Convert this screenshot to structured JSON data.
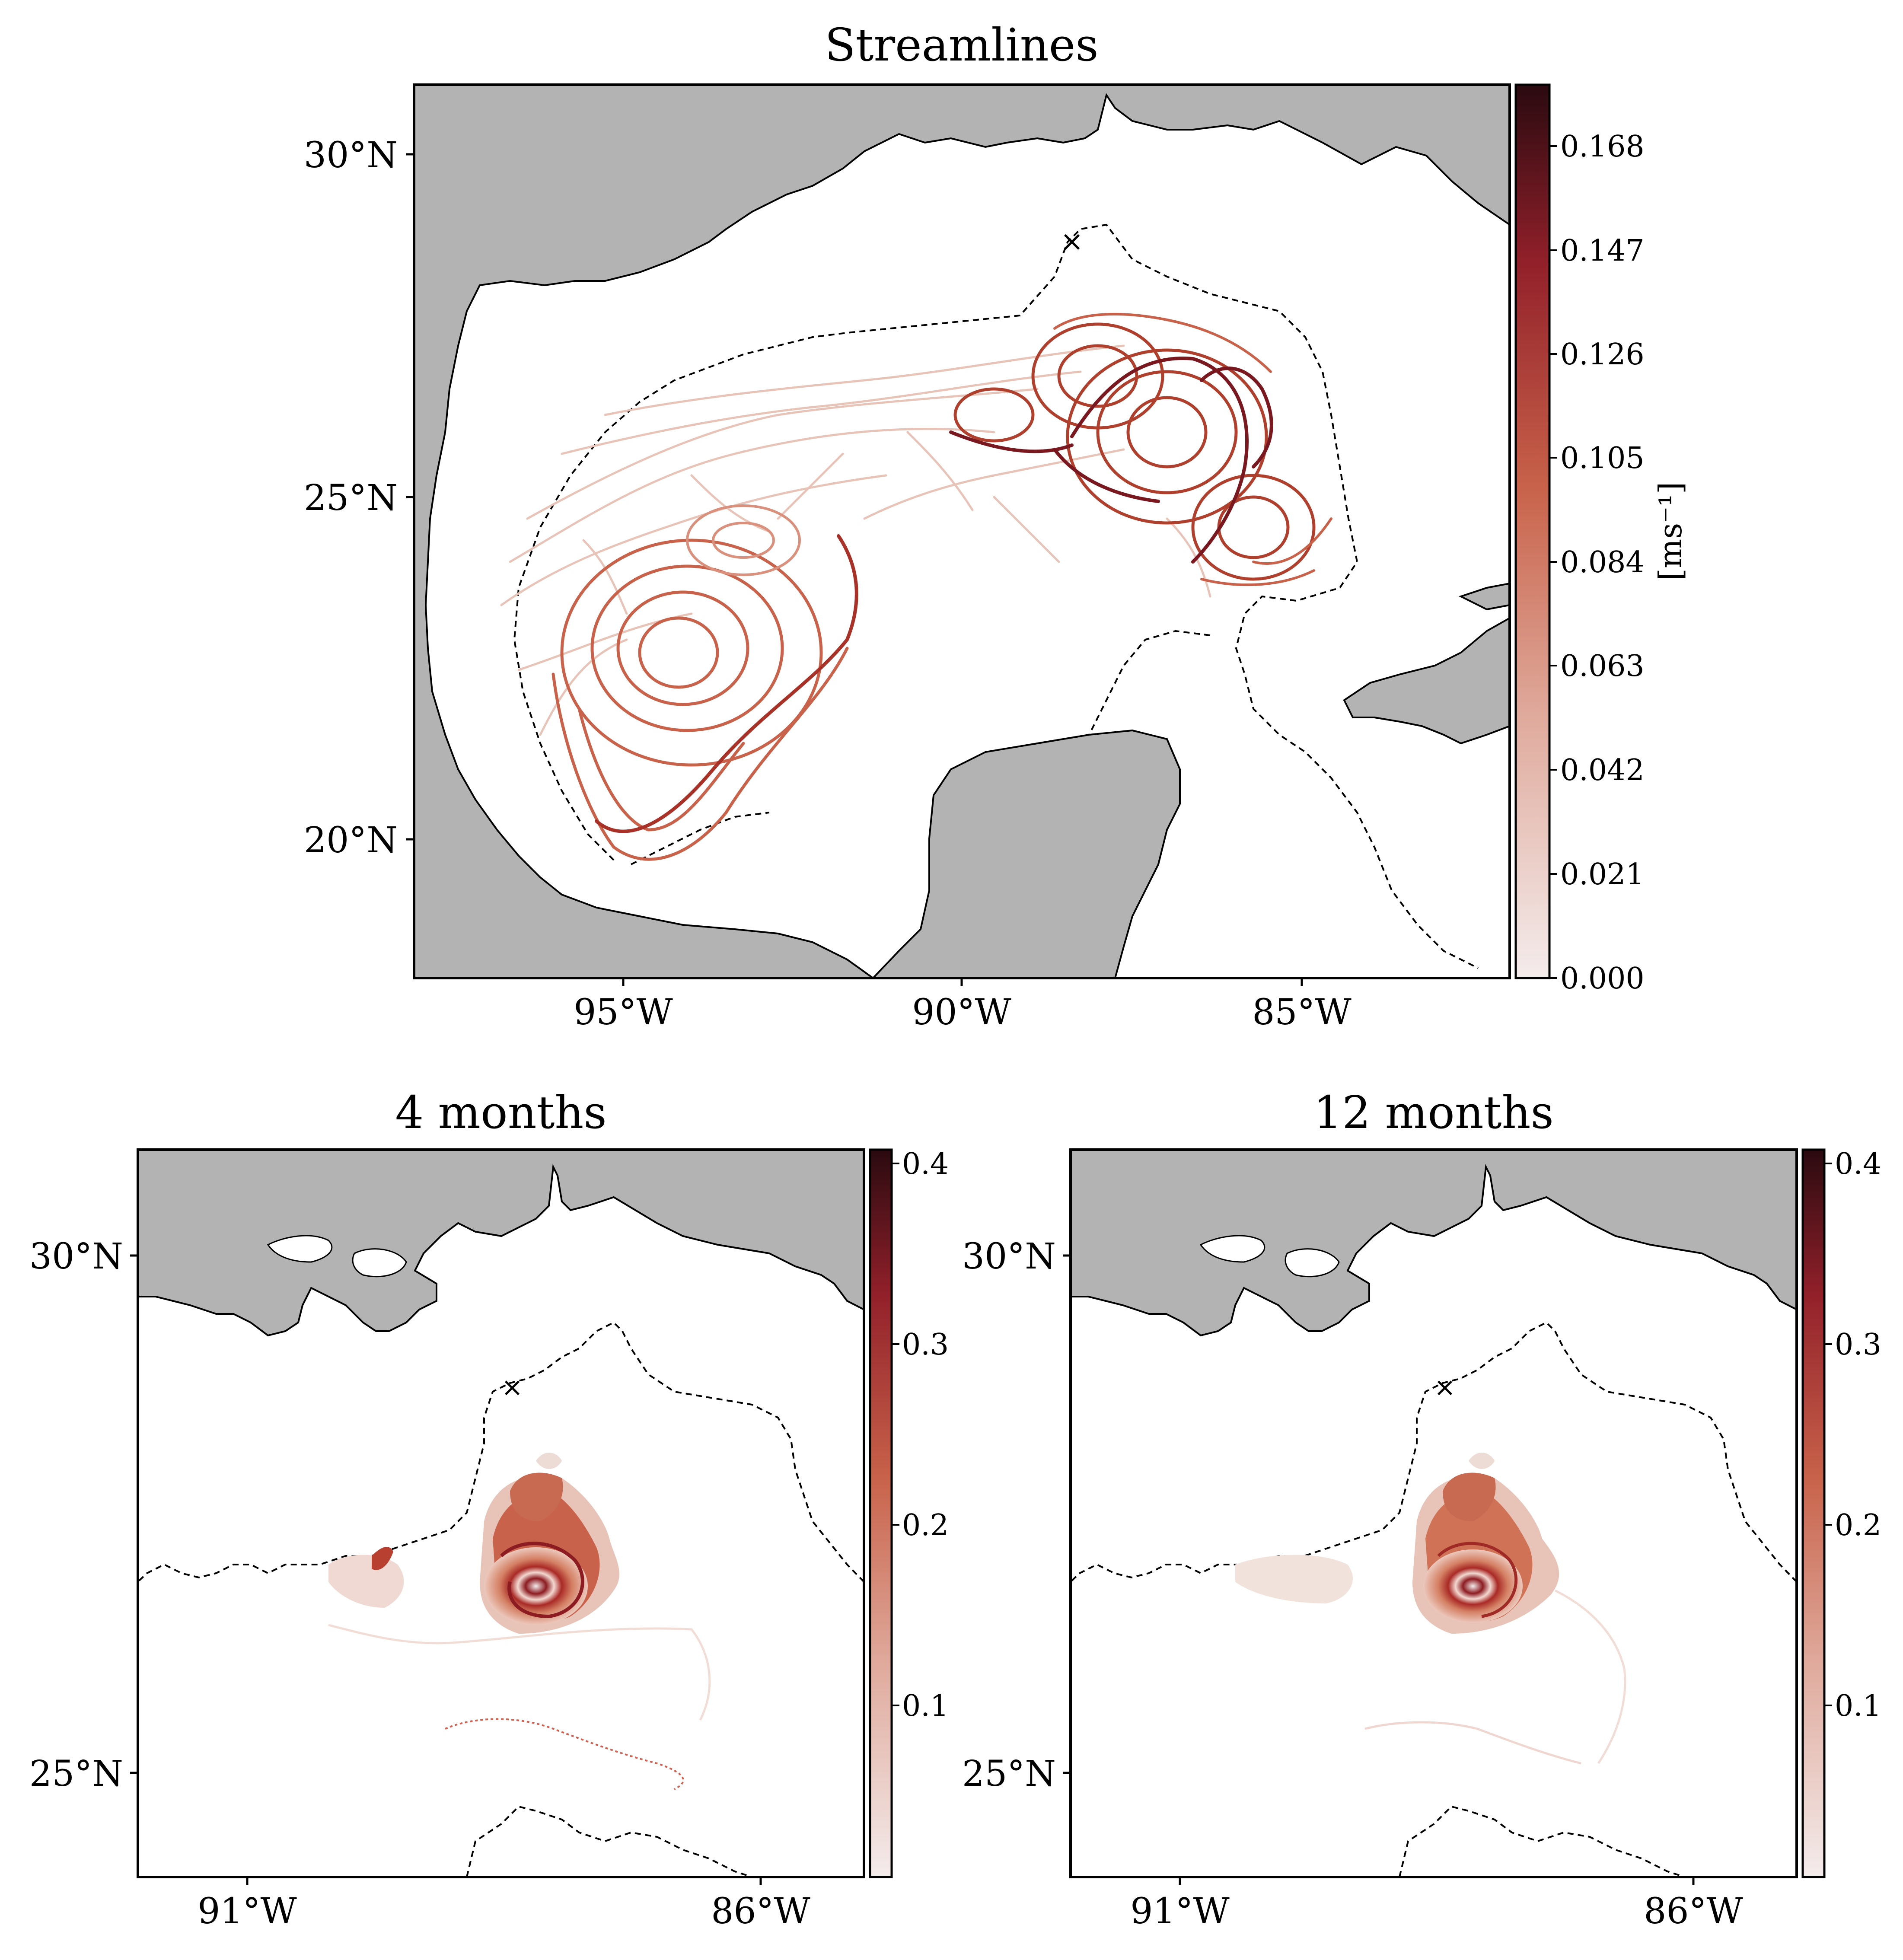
{
  "panels": {
    "top": {
      "title": "Streamlines",
      "y_ticks": [
        "30°N",
        "25°N",
        "20°N"
      ],
      "x_ticks": [
        "95°W",
        "90°W",
        "85°W"
      ],
      "colorbar": {
        "label": "[ms⁻¹]",
        "ticks": [
          "0.168",
          "0.147",
          "0.126",
          "0.105",
          "0.084",
          "0.063",
          "0.042",
          "0.021",
          "0.000"
        ]
      },
      "marker": "×"
    },
    "bottom_left": {
      "title": "4 months",
      "y_ticks": [
        "30°N",
        "25°N"
      ],
      "x_ticks": [
        "91°W",
        "86°W"
      ],
      "colorbar": {
        "ticks": [
          "0.4",
          "0.3",
          "0.2",
          "0.1"
        ]
      },
      "marker": "×"
    },
    "bottom_right": {
      "title": "12 months",
      "y_ticks": [
        "30°N",
        "25°N"
      ],
      "x_ticks": [
        "91°W",
        "86°W"
      ],
      "colorbar": {
        "ticks": [
          "0.4",
          "0.3",
          "0.2",
          "0.1"
        ]
      },
      "marker": "×"
    }
  },
  "colors": {
    "land": "#b3b3b3",
    "cmap_low": "#f4ecec",
    "cmap_mid": "#c8624a",
    "cmap_high": "#2a0a10"
  }
}
